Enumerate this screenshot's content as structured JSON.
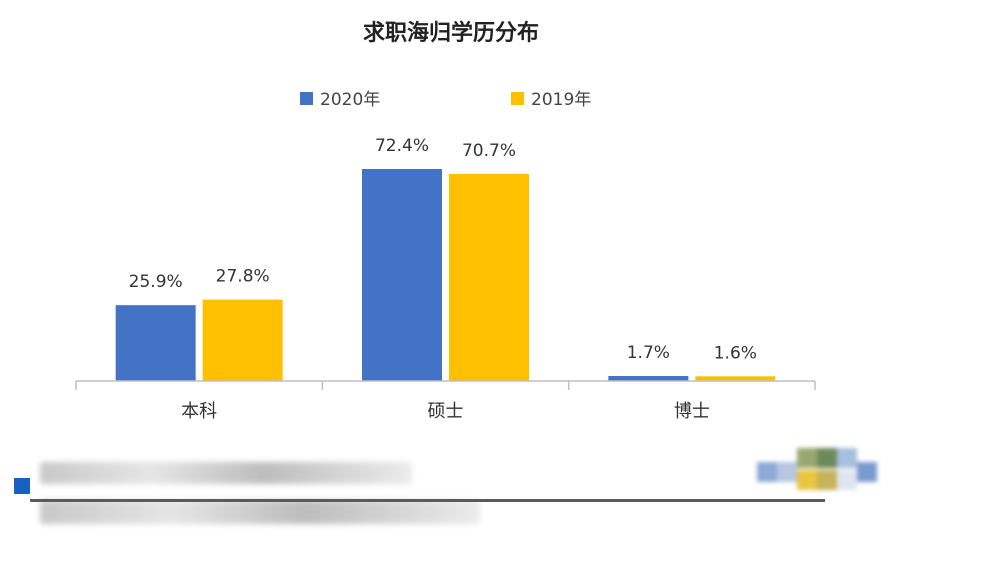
{
  "chart_data": {
    "type": "bar",
    "title": "求职海归学历分布",
    "categories": [
      "本科",
      "硕士",
      "博士"
    ],
    "series": [
      {
        "name": "2020年",
        "color": "#4472C4",
        "values": [
          25.9,
          72.4,
          1.7
        ],
        "labels": [
          "25.9%",
          "72.4%",
          "1.7%"
        ]
      },
      {
        "name": "2019年",
        "color": "#FFC000",
        "values": [
          27.8,
          70.7,
          1.6
        ],
        "labels": [
          "27.8%",
          "70.7%",
          "1.6%"
        ]
      }
    ],
    "ylim": [
      0,
      72.4
    ],
    "grid": false,
    "legend": "top-center"
  }
}
